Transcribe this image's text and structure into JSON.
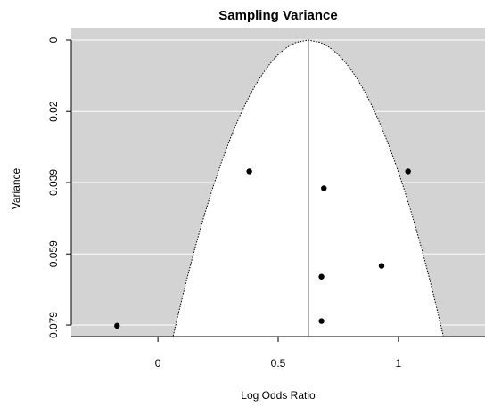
{
  "chart_data": {
    "type": "scatter",
    "title": "Sampling Variance",
    "xlabel": "Log Odds Ratio",
    "ylabel": "Variance",
    "xlim": [
      -0.36,
      1.36
    ],
    "ylim": [
      0.082,
      0
    ],
    "y_reversed": true,
    "x_ticks": [
      {
        "value": 0,
        "label": "0"
      },
      {
        "value": 0.5,
        "label": "0.5"
      },
      {
        "value": 1,
        "label": "1"
      }
    ],
    "y_ticks": [
      {
        "value": 0,
        "label": "0"
      },
      {
        "value": 0.0198,
        "label": "0.02"
      },
      {
        "value": 0.0395,
        "label": "0.039"
      },
      {
        "value": 0.0593,
        "label": "0.059"
      },
      {
        "value": 0.079,
        "label": "0.079"
      }
    ],
    "summary_estimate": 0.625,
    "funnel_max_variance": 0.082,
    "funnel_z": 1.96,
    "points": [
      {
        "x": -0.17,
        "y": 0.0792
      },
      {
        "x": 0.38,
        "y": 0.0364
      },
      {
        "x": 0.69,
        "y": 0.0411
      },
      {
        "x": 1.04,
        "y": 0.0364
      },
      {
        "x": 0.93,
        "y": 0.0626
      },
      {
        "x": 0.68,
        "y": 0.0656
      },
      {
        "x": 0.68,
        "y": 0.0779
      }
    ],
    "colors": {
      "panel_background": "#d3d3d3",
      "funnel_fill": "#ffffff",
      "gridline": "#ffffff",
      "points": "#000000",
      "lines": "#000000"
    }
  }
}
